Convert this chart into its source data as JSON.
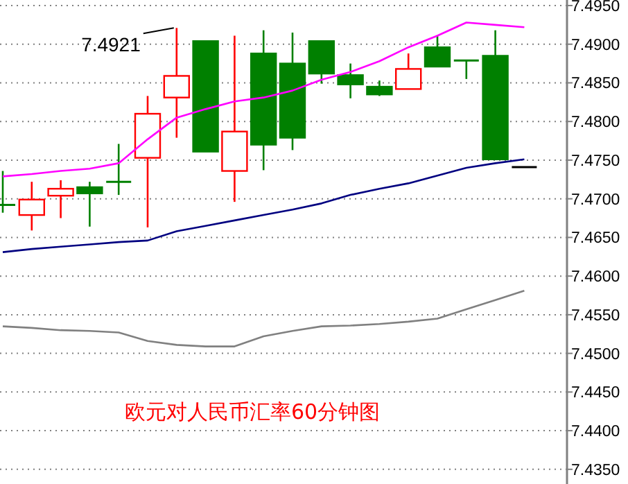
{
  "chart_data": {
    "type": "candlestick",
    "title": "欧元对人民币汇率60分钟图",
    "categories": [
      null,
      null,
      null,
      null,
      null,
      null,
      null,
      null,
      null,
      null,
      null,
      null,
      null,
      null,
      null,
      null,
      null,
      null,
      null
    ],
    "ohlc": [
      [
        7.4692,
        7.4736,
        7.4682,
        7.4692
      ],
      [
        7.4679,
        7.4722,
        7.4659,
        7.4699
      ],
      [
        7.4704,
        7.4724,
        7.4675,
        7.4713
      ],
      [
        7.4715,
        7.4722,
        7.4664,
        7.4707
      ],
      [
        7.4722,
        7.4771,
        7.4705,
        7.4722
      ],
      [
        7.4753,
        7.4833,
        7.4663,
        7.481
      ],
      [
        7.4831,
        7.4921,
        7.4779,
        7.4859
      ],
      [
        7.4904,
        7.4904,
        7.4761,
        7.4761
      ],
      [
        7.4736,
        7.4911,
        7.4696,
        7.4787
      ],
      [
        7.4888,
        7.4918,
        7.4737,
        7.477
      ],
      [
        7.4875,
        7.4915,
        7.4763,
        7.4779
      ],
      [
        7.4904,
        7.4904,
        7.4849,
        7.4862
      ],
      [
        7.486,
        7.4875,
        7.483,
        7.4848
      ],
      [
        7.4845,
        7.4853,
        7.4833,
        7.4835
      ],
      [
        7.4842,
        7.4888,
        7.4842,
        7.4868
      ],
      [
        7.4896,
        7.4911,
        7.4871,
        7.4871
      ],
      [
        7.4879,
        7.4879,
        7.4855,
        7.4879
      ],
      [
        7.4885,
        7.4918,
        7.4751,
        7.4751
      ],
      [
        7.4741,
        7.4741,
        7.4741,
        7.4741
      ]
    ],
    "colors": [
      "#008000",
      "#ff0000",
      "#ff0000",
      "#008000",
      "#008000",
      "#ff0000",
      "#ff0000",
      "#008000",
      "#ff0000",
      "#008000",
      "#008000",
      "#008000",
      "#008000",
      "#008000",
      "#ff0000",
      "#008000",
      "#008000",
      "#008000",
      "#000000"
    ],
    "series": [
      {
        "type": "line",
        "color": "#ff00ff",
        "values": [
          7.4729,
          7.4732,
          7.4736,
          7.4739,
          7.4746,
          7.4777,
          7.4805,
          7.4816,
          7.4826,
          7.4831,
          7.484,
          7.4854,
          7.4864,
          7.4878,
          7.4896,
          7.4911,
          7.4928,
          7.4925,
          7.4922
        ]
      },
      {
        "type": "line",
        "color": "#000080",
        "values": [
          7.4631,
          7.4635,
          7.4638,
          7.4641,
          7.4644,
          7.4646,
          7.4658,
          7.4665,
          7.4672,
          7.4679,
          7.4686,
          7.4694,
          7.4705,
          7.4713,
          7.472,
          7.473,
          7.474,
          7.4746,
          7.4751
        ]
      },
      {
        "type": "line",
        "color": "#808080",
        "values": [
          7.4535,
          7.4533,
          7.453,
          7.4529,
          7.4527,
          7.4516,
          7.4511,
          7.4509,
          7.4509,
          7.4522,
          7.4529,
          7.4535,
          7.4536,
          7.4538,
          7.4541,
          7.4545,
          7.4557,
          7.4569,
          7.4581
        ]
      }
    ],
    "annotations": [
      "7.4921"
    ],
    "ylim": [
      7.4331,
      7.495
    ],
    "yticks": [
      {
        "value": 7.435,
        "label": "7.4350"
      },
      {
        "value": 7.44,
        "label": "7.4400"
      },
      {
        "value": 7.445,
        "label": "7.4450"
      },
      {
        "value": 7.45,
        "label": "7.4500"
      },
      {
        "value": 7.455,
        "label": "7.4550"
      },
      {
        "value": 7.46,
        "label": "7.4600"
      },
      {
        "value": 7.465,
        "label": "7.4650"
      },
      {
        "value": 7.47,
        "label": "7.4700"
      },
      {
        "value": 7.475,
        "label": "7.4750"
      },
      {
        "value": 7.48,
        "label": "7.4800"
      },
      {
        "value": 7.485,
        "label": "7.4850"
      },
      {
        "value": 7.49,
        "label": "7.4900"
      },
      {
        "value": 7.495,
        "label": "7.4950"
      }
    ],
    "grid": "y"
  }
}
